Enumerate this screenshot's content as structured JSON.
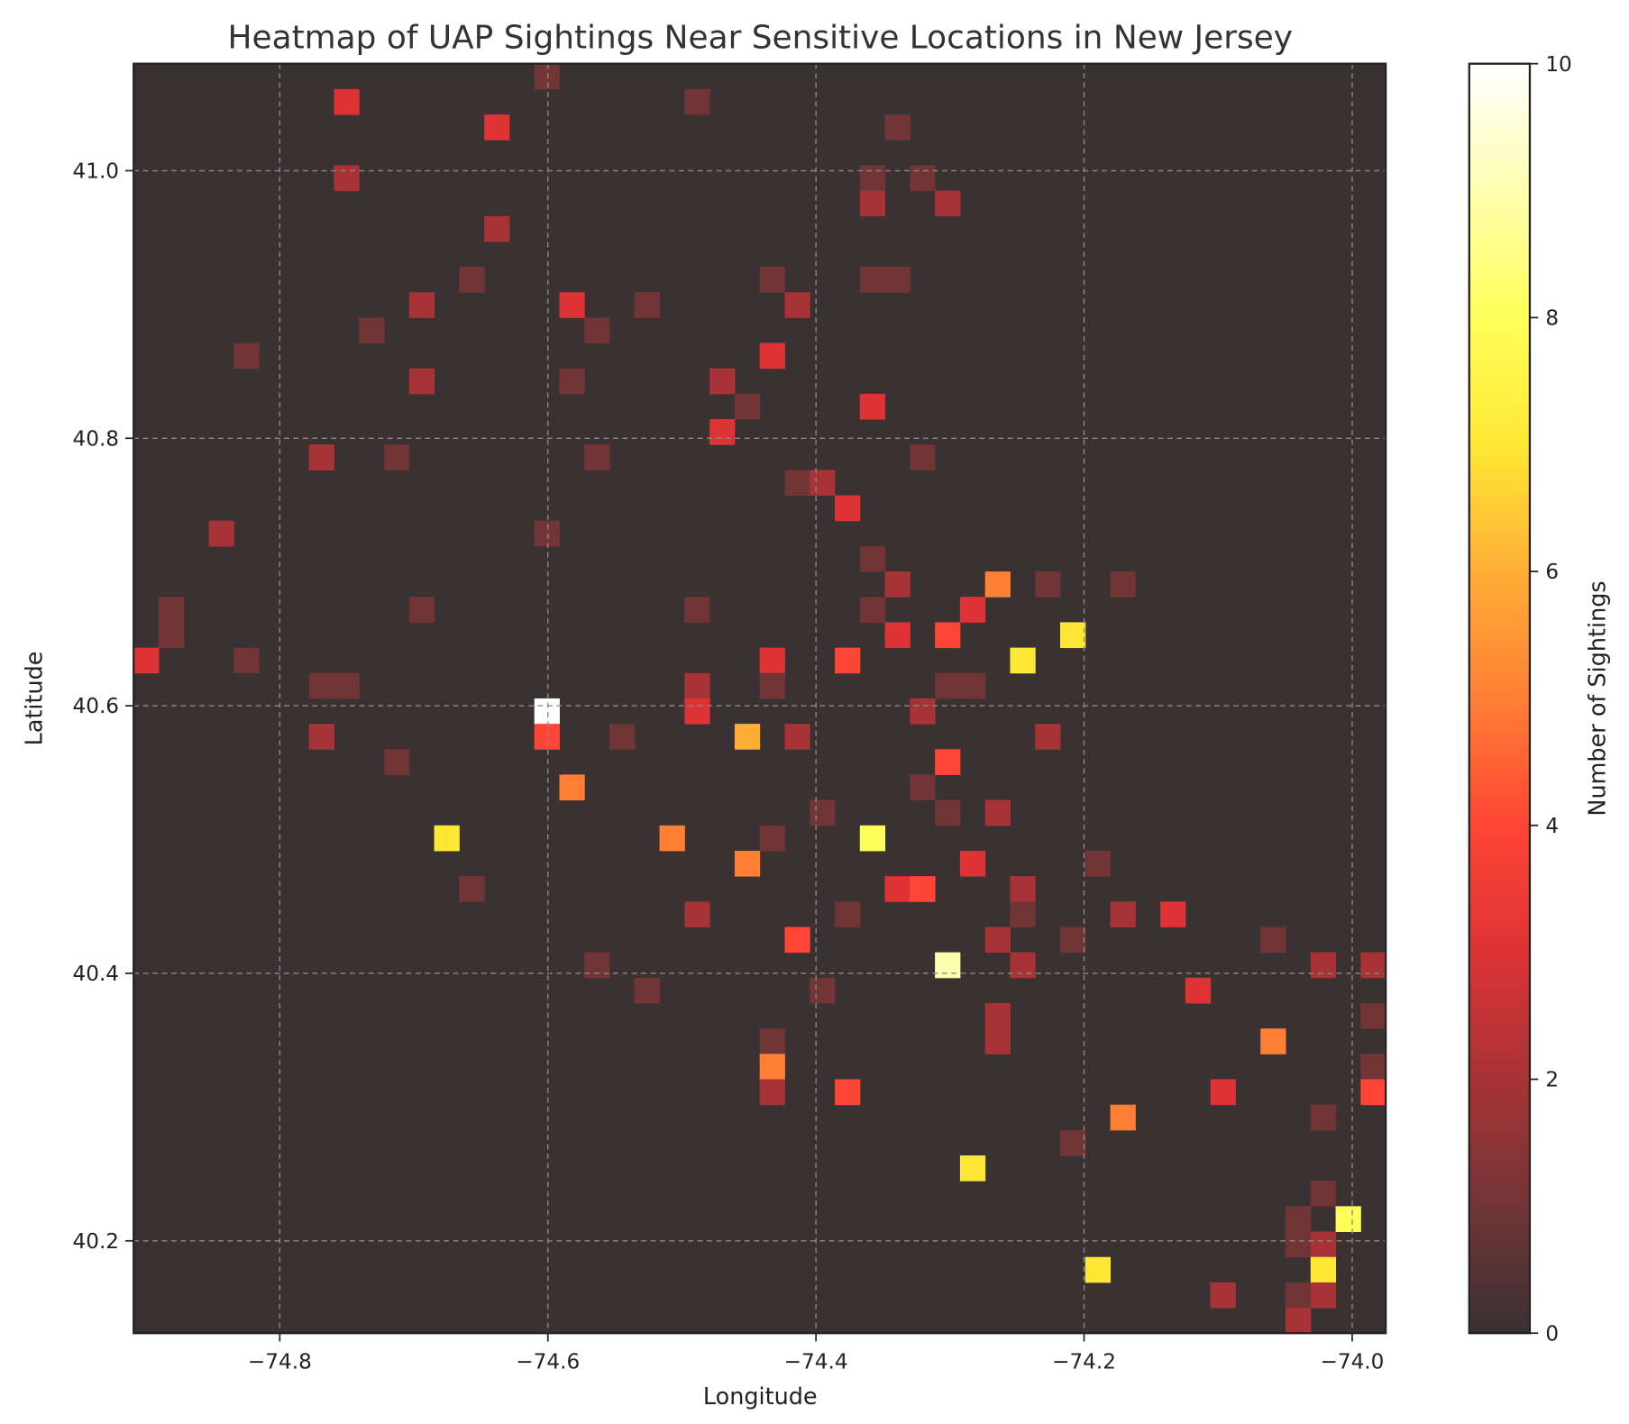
{
  "chart_data": {
    "type": "heatmap",
    "title": "Heatmap of UAP Sightings Near Sensitive Locations in New Jersey",
    "xlabel": "Longitude",
    "ylabel": "Latitude",
    "colorbar_label": "Number of Sightings",
    "xlim": [
      -74.909,
      -73.975
    ],
    "ylim": [
      40.131,
      41.08
    ],
    "bins": [
      50,
      50
    ],
    "x_ticks": [
      -74.8,
      -74.6,
      -74.4,
      -74.2,
      -74.0
    ],
    "x_tick_labels": [
      "−74.8",
      "−74.6",
      "−74.4",
      "−74.2",
      "−74.0"
    ],
    "y_ticks": [
      40.2,
      40.4,
      40.6,
      40.8,
      41.0
    ],
    "y_tick_labels": [
      "40.2",
      "40.4",
      "40.6",
      "40.8",
      "41.0"
    ],
    "colorbar_range": [
      0,
      10
    ],
    "colorbar_ticks": [
      0,
      2,
      4,
      6,
      8,
      10
    ],
    "colorbar_tick_labels": [
      "0",
      "2",
      "4",
      "6",
      "8",
      "10"
    ],
    "grid": true,
    "colormap": [
      "#3a3132",
      "#723536",
      "#a83336",
      "#dd3335",
      "#ff4535",
      "#ff7f35",
      "#ffae35",
      "#ffe835",
      "#ffff5a",
      "#ffffb0",
      "#ffffff"
    ],
    "cells_format": [
      "lon_bin_from_west",
      "lat_bin_from_south",
      "count"
    ],
    "cells": [
      [
        16,
        49,
        1
      ],
      [
        8,
        48,
        3
      ],
      [
        22,
        48,
        1
      ],
      [
        14,
        47,
        3
      ],
      [
        30,
        47,
        1
      ],
      [
        8,
        45,
        2
      ],
      [
        29,
        45,
        1
      ],
      [
        29,
        44,
        2
      ],
      [
        31,
        45,
        1
      ],
      [
        32,
        44,
        2
      ],
      [
        14,
        43,
        2
      ],
      [
        13,
        41,
        1
      ],
      [
        25,
        41,
        1
      ],
      [
        26,
        40,
        2
      ],
      [
        29,
        41,
        1
      ],
      [
        30,
        41,
        1
      ],
      [
        11,
        40,
        2
      ],
      [
        17,
        40,
        3
      ],
      [
        20,
        40,
        1
      ],
      [
        9,
        39,
        1
      ],
      [
        18,
        39,
        1
      ],
      [
        4,
        38,
        1
      ],
      [
        25,
        38,
        3
      ],
      [
        11,
        37,
        2
      ],
      [
        17,
        37,
        1
      ],
      [
        23,
        37,
        2
      ],
      [
        24,
        36,
        1
      ],
      [
        29,
        36,
        3
      ],
      [
        23,
        35,
        3
      ],
      [
        7,
        34,
        2
      ],
      [
        10,
        34,
        1
      ],
      [
        18,
        34,
        1
      ],
      [
        31,
        34,
        1
      ],
      [
        26,
        33,
        1
      ],
      [
        27,
        33,
        2
      ],
      [
        28,
        32,
        3
      ],
      [
        3,
        31,
        2
      ],
      [
        16,
        31,
        1
      ],
      [
        29,
        30,
        1
      ],
      [
        1,
        28,
        1
      ],
      [
        1,
        27,
        1
      ],
      [
        11,
        28,
        1
      ],
      [
        22,
        28,
        1
      ],
      [
        30,
        29,
        2
      ],
      [
        29,
        28,
        1
      ],
      [
        34,
        29,
        5
      ],
      [
        36,
        29,
        1
      ],
      [
        39,
        29,
        1
      ],
      [
        33,
        28,
        3
      ],
      [
        30,
        27,
        3
      ],
      [
        32,
        27,
        4
      ],
      [
        37,
        27,
        7
      ],
      [
        0,
        26,
        3
      ],
      [
        4,
        26,
        1
      ],
      [
        25,
        26,
        3
      ],
      [
        28,
        26,
        4
      ],
      [
        35,
        26,
        7
      ],
      [
        7,
        25,
        1
      ],
      [
        8,
        25,
        1
      ],
      [
        22,
        25,
        2
      ],
      [
        22,
        24,
        3
      ],
      [
        25,
        25,
        1
      ],
      [
        32,
        25,
        1
      ],
      [
        33,
        25,
        1
      ],
      [
        16,
        24,
        10
      ],
      [
        16,
        23,
        4
      ],
      [
        31,
        24,
        2
      ],
      [
        7,
        23,
        2
      ],
      [
        19,
        23,
        1
      ],
      [
        24,
        23,
        6
      ],
      [
        26,
        23,
        2
      ],
      [
        36,
        23,
        2
      ],
      [
        10,
        22,
        1
      ],
      [
        32,
        22,
        4
      ],
      [
        17,
        21,
        5
      ],
      [
        31,
        21,
        1
      ],
      [
        27,
        20,
        1
      ],
      [
        32,
        20,
        1
      ],
      [
        34,
        20,
        2
      ],
      [
        12,
        19,
        7
      ],
      [
        21,
        19,
        5
      ],
      [
        25,
        19,
        1
      ],
      [
        29,
        19,
        8
      ],
      [
        24,
        18,
        5
      ],
      [
        33,
        18,
        3
      ],
      [
        38,
        18,
        1
      ],
      [
        13,
        17,
        1
      ],
      [
        30,
        17,
        3
      ],
      [
        31,
        17,
        4
      ],
      [
        35,
        17,
        2
      ],
      [
        35,
        16,
        1
      ],
      [
        22,
        16,
        2
      ],
      [
        28,
        16,
        1
      ],
      [
        39,
        16,
        2
      ],
      [
        41,
        16,
        3
      ],
      [
        26,
        15,
        4
      ],
      [
        34,
        15,
        2
      ],
      [
        37,
        15,
        1
      ],
      [
        45,
        15,
        1
      ],
      [
        18,
        14,
        1
      ],
      [
        32,
        14,
        9
      ],
      [
        35,
        14,
        2
      ],
      [
        47,
        14,
        2
      ],
      [
        49,
        14,
        2
      ],
      [
        20,
        13,
        1
      ],
      [
        27,
        13,
        1
      ],
      [
        42,
        13,
        3
      ],
      [
        34,
        12,
        2
      ],
      [
        34,
        11,
        2
      ],
      [
        49,
        12,
        1
      ],
      [
        25,
        11,
        1
      ],
      [
        25,
        10,
        5
      ],
      [
        25,
        9,
        2
      ],
      [
        45,
        11,
        5
      ],
      [
        49,
        10,
        1
      ],
      [
        49,
        9,
        4
      ],
      [
        28,
        9,
        4
      ],
      [
        43,
        9,
        3
      ],
      [
        39,
        8,
        5
      ],
      [
        47,
        8,
        1
      ],
      [
        37,
        7,
        1
      ],
      [
        33,
        6,
        7
      ],
      [
        47,
        5,
        1
      ],
      [
        46,
        4,
        1
      ],
      [
        48,
        4,
        8
      ],
      [
        46,
        3,
        1
      ],
      [
        47,
        3,
        2
      ],
      [
        38,
        2,
        7
      ],
      [
        47,
        2,
        7
      ],
      [
        43,
        1,
        2
      ],
      [
        46,
        1,
        1
      ],
      [
        47,
        1,
        2
      ],
      [
        46,
        0,
        2
      ]
    ]
  }
}
